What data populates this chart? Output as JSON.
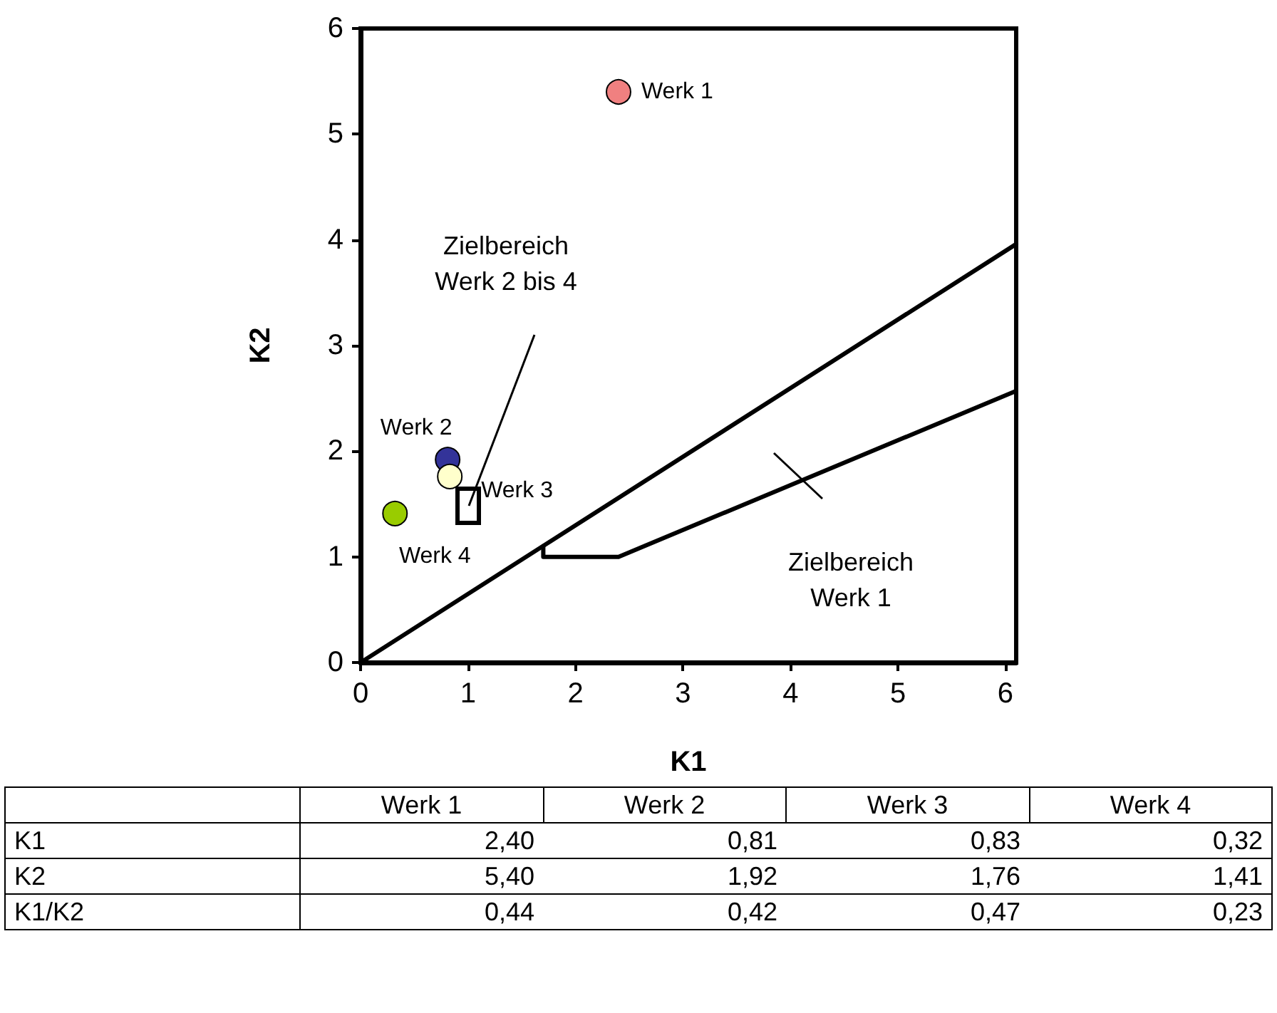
{
  "chart_data": [
    {
      "type": "scatter",
      "xlabel": "K1",
      "ylabel": "K2",
      "xlim": [
        0,
        6.1
      ],
      "ylim": [
        0,
        6
      ],
      "xticks": [
        0,
        1,
        2,
        3,
        4,
        5,
        6
      ],
      "yticks": [
        0,
        1,
        2,
        3,
        4,
        5,
        6
      ],
      "marker": "circle",
      "series": [
        {
          "name": "Werk 1",
          "color": "#f08080",
          "x": [
            2.4
          ],
          "values": [
            5.4
          ]
        },
        {
          "name": "Werk 2",
          "color": "#333399",
          "x": [
            0.81
          ],
          "values": [
            1.92
          ]
        },
        {
          "name": "Werk 3",
          "color": "#ffffcc",
          "x": [
            0.83
          ],
          "values": [
            1.76
          ]
        },
        {
          "name": "Werk 4",
          "color": "#99cc00",
          "x": [
            0.32
          ],
          "values": [
            1.41
          ]
        },
        {
          "type": "line",
          "marker": "none",
          "color": "#000000",
          "x": [
            0,
            6.1
          ],
          "values": [
            0,
            3.96
          ]
        },
        {
          "type": "line",
          "marker": "none",
          "color": "#000000",
          "x": [
            1.7,
            1.7,
            2.4,
            6.1
          ],
          "values": [
            1.1,
            1.0,
            1.0,
            2.57
          ]
        }
      ],
      "annotations": [
        "Zielbereich\nWerk 2 bis 4",
        "Zielbereich\nWerk 1"
      ]
    },
    {
      "type": "other",
      "categories": [
        "Werk 1",
        "Werk 2",
        "Werk 3",
        "Werk 4"
      ],
      "y_categories": [
        "K1",
        "K2",
        "K1/K2"
      ],
      "cell_labels": [
        [
          "2,40",
          "0,81",
          "0,83",
          "0,32"
        ],
        [
          "5,40",
          "1,92",
          "1,76",
          "1,41"
        ],
        [
          "0,44",
          "0,42",
          "0,47",
          "0,23"
        ]
      ]
    }
  ]
}
